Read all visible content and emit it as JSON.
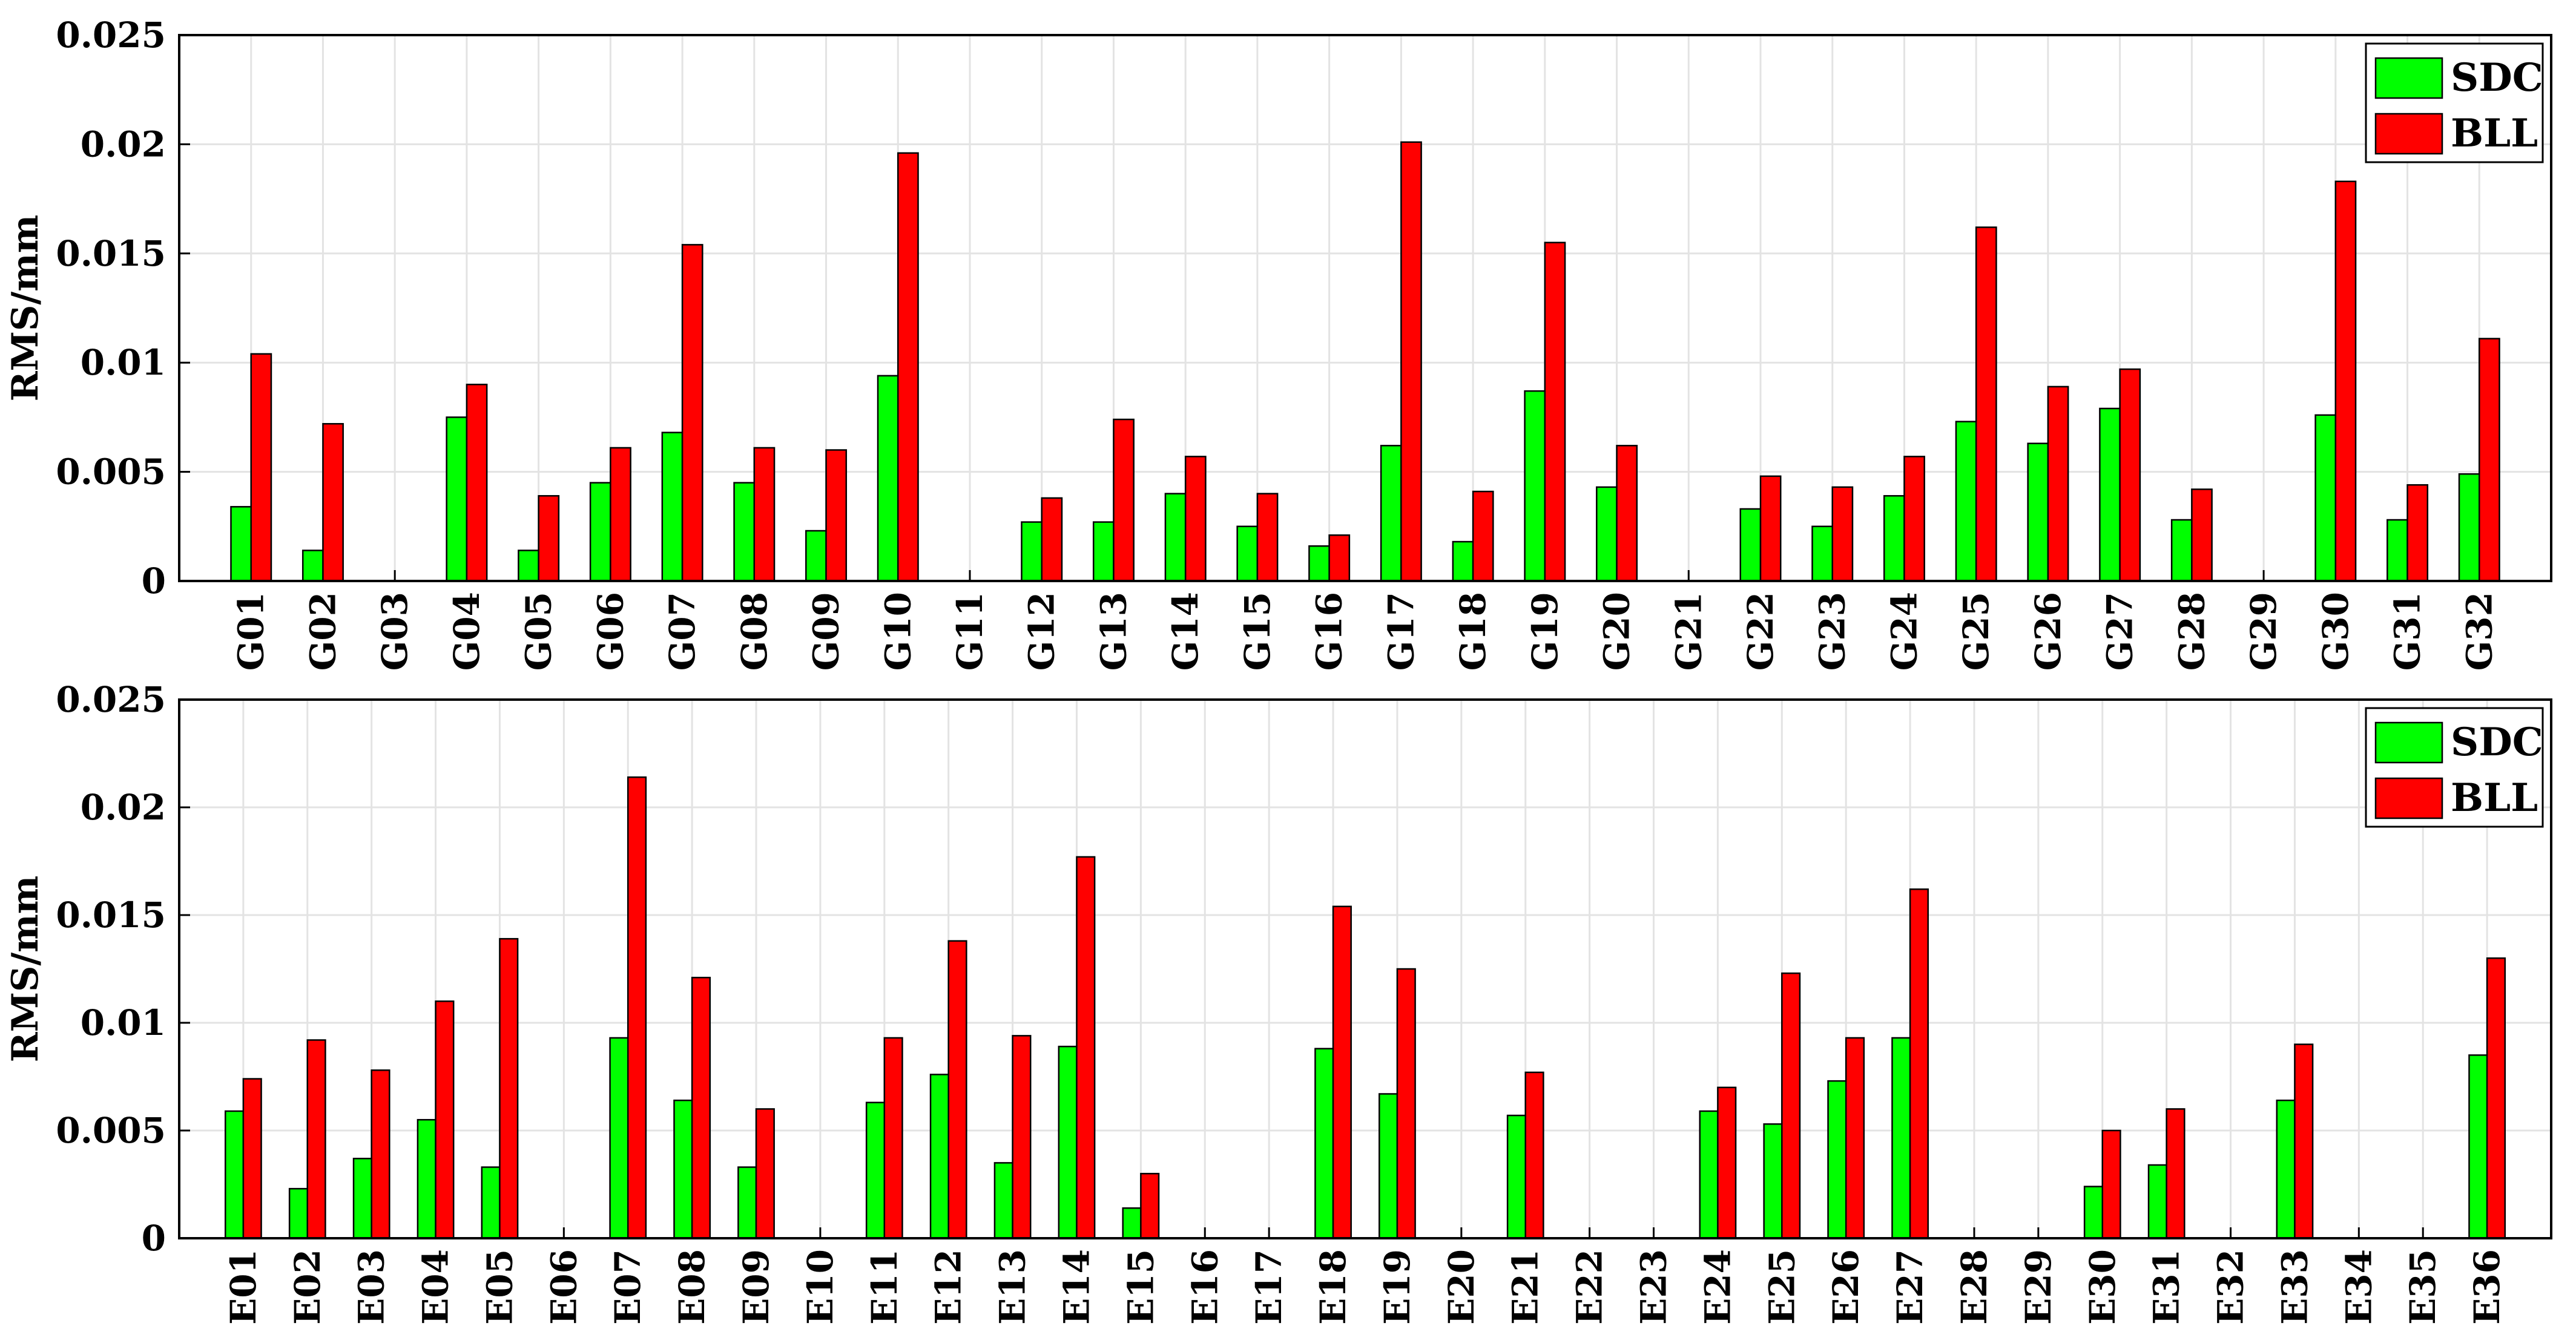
{
  "charts": [
    {
      "type": "bar",
      "ylabel": "RMS/mm",
      "ylim": [
        0,
        0.025
      ],
      "yticks": [
        "0",
        "0.005",
        "0.01",
        "0.015",
        "0.02",
        "0.025"
      ],
      "grid": true,
      "legend_position": "top-right",
      "categories": [
        "G01",
        "G02",
        "G03",
        "G04",
        "G05",
        "G06",
        "G07",
        "G08",
        "G09",
        "G10",
        "G11",
        "G12",
        "G13",
        "G14",
        "G15",
        "G16",
        "G17",
        "G18",
        "G19",
        "G20",
        "G21",
        "G22",
        "G23",
        "G24",
        "G25",
        "G26",
        "G27",
        "G28",
        "G29",
        "G30",
        "G31",
        "G32"
      ],
      "series": [
        {
          "name": "SDC",
          "color": "#00ff00",
          "values": [
            0.0034,
            0.0014,
            0,
            0.0075,
            0.0014,
            0.0045,
            0.0068,
            0.0045,
            0.0023,
            0.0094,
            0,
            0.0027,
            0.0027,
            0.004,
            0.0025,
            0.0016,
            0.0062,
            0.0018,
            0.0087,
            0.0043,
            0,
            0.0033,
            0.0025,
            0.0039,
            0.0073,
            0.0063,
            0.0079,
            0.0028,
            0,
            0.0076,
            0.0028,
            0.0049
          ]
        },
        {
          "name": "BLL",
          "color": "#ff0000",
          "values": [
            0.0104,
            0.0072,
            0,
            0.009,
            0.0039,
            0.0061,
            0.0154,
            0.0061,
            0.006,
            0.0196,
            0,
            0.0038,
            0.0074,
            0.0057,
            0.004,
            0.0021,
            0.0201,
            0.0041,
            0.0155,
            0.0062,
            0,
            0.0048,
            0.0043,
            0.0057,
            0.0162,
            0.0089,
            0.0097,
            0.0042,
            0,
            0.0183,
            0.0044,
            0.0111
          ]
        }
      ]
    },
    {
      "type": "bar",
      "ylabel": "RMS/mm",
      "ylim": [
        0,
        0.025
      ],
      "yticks": [
        "0",
        "0.005",
        "0.01",
        "0.015",
        "0.02",
        "0.025"
      ],
      "grid": true,
      "legend_position": "top-right",
      "categories": [
        "E01",
        "E02",
        "E03",
        "E04",
        "E05",
        "E06",
        "E07",
        "E08",
        "E09",
        "E10",
        "E11",
        "E12",
        "E13",
        "E14",
        "E15",
        "E16",
        "E17",
        "E18",
        "E19",
        "E20",
        "E21",
        "E22",
        "E23",
        "E24",
        "E25",
        "E26",
        "E27",
        "E28",
        "E29",
        "E30",
        "E31",
        "E32",
        "E33",
        "E34",
        "E35",
        "E36"
      ],
      "series": [
        {
          "name": "SDC",
          "color": "#00ff00",
          "values": [
            0.0059,
            0.0023,
            0.0037,
            0.0055,
            0.0033,
            0,
            0.0093,
            0.0064,
            0.0033,
            0,
            0.0063,
            0.0076,
            0.0035,
            0.0089,
            0.0014,
            0,
            0,
            0.0088,
            0.0067,
            0,
            0.0057,
            0,
            0,
            0.0059,
            0.0053,
            0.0073,
            0.0093,
            0,
            0,
            0.0024,
            0.0034,
            0,
            0.0064,
            0,
            0,
            0.0085
          ]
        },
        {
          "name": "BLL",
          "color": "#ff0000",
          "values": [
            0.0074,
            0.0092,
            0.0078,
            0.011,
            0.0139,
            0,
            0.0214,
            0.0121,
            0.006,
            0,
            0.0093,
            0.0138,
            0.0094,
            0.0177,
            0.003,
            0,
            0,
            0.0154,
            0.0125,
            0,
            0.0077,
            0,
            0,
            0.007,
            0.0123,
            0.0093,
            0.0162,
            0,
            0,
            0.005,
            0.006,
            0,
            0.009,
            0,
            0,
            0.013
          ]
        }
      ]
    }
  ]
}
